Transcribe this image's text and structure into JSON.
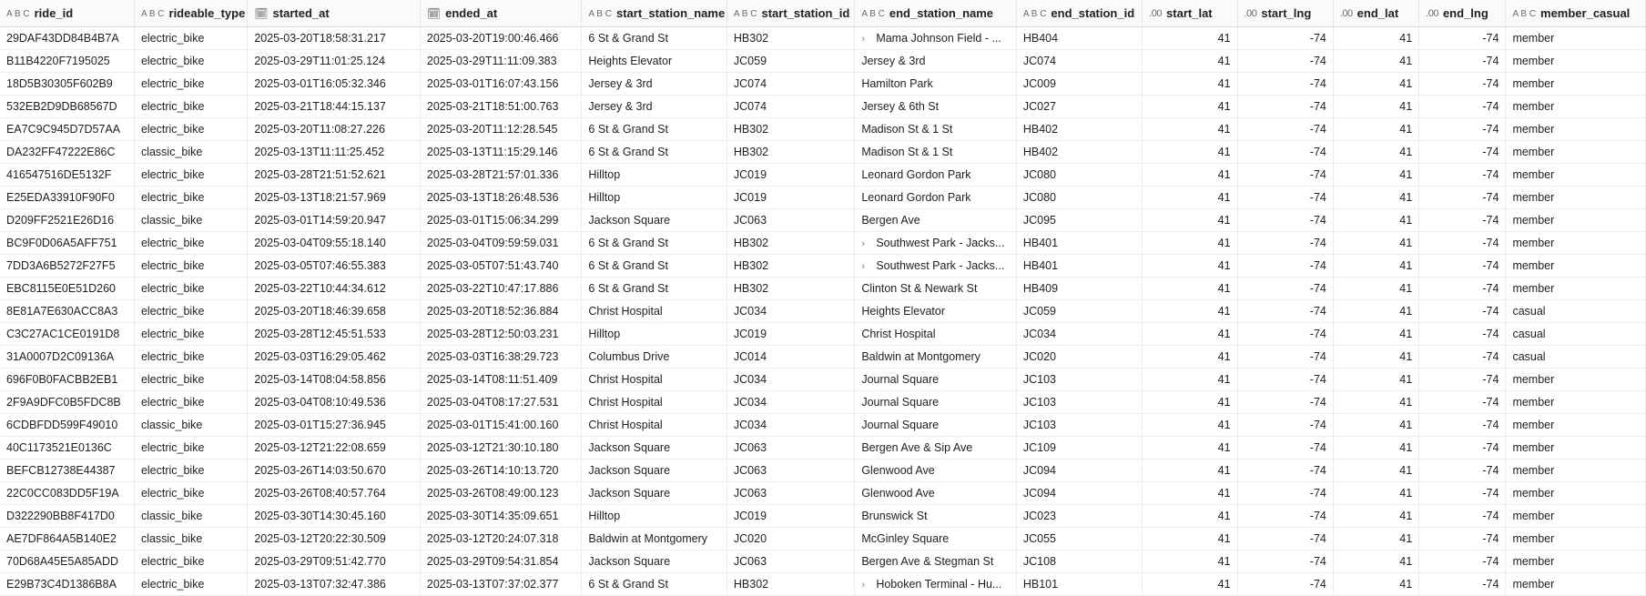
{
  "columns": [
    {
      "key": "ride_id",
      "label": "ride_id",
      "type_icon": "A B C",
      "icon_name": "text-type-icon",
      "align": "left"
    },
    {
      "key": "rideable_type",
      "label": "rideable_type",
      "type_icon": "A B C",
      "icon_name": "text-type-icon",
      "align": "left"
    },
    {
      "key": "started_at",
      "label": "started_at",
      "type_icon": "🗓",
      "icon_name": "datetime-type-icon",
      "align": "left"
    },
    {
      "key": "ended_at",
      "label": "ended_at",
      "type_icon": "🗓",
      "icon_name": "datetime-type-icon",
      "align": "left"
    },
    {
      "key": "start_station_name",
      "label": "start_station_name",
      "type_icon": "A B C",
      "icon_name": "text-type-icon",
      "align": "left"
    },
    {
      "key": "start_station_id",
      "label": "start_station_id",
      "type_icon": "A B C",
      "icon_name": "text-type-icon",
      "align": "left"
    },
    {
      "key": "end_station_name",
      "label": "end_station_name",
      "type_icon": "A B C",
      "icon_name": "text-type-icon",
      "align": "left"
    },
    {
      "key": "end_station_id",
      "label": "end_station_id",
      "type_icon": "A B C",
      "icon_name": "text-type-icon",
      "align": "left"
    },
    {
      "key": "start_lat",
      "label": "start_lat",
      "type_icon": ".00",
      "icon_name": "decimal-type-icon",
      "align": "right"
    },
    {
      "key": "start_lng",
      "label": "start_lng",
      "type_icon": ".00",
      "icon_name": "decimal-type-icon",
      "align": "right"
    },
    {
      "key": "end_lat",
      "label": "end_lat",
      "type_icon": ".00",
      "icon_name": "decimal-type-icon",
      "align": "right"
    },
    {
      "key": "end_lng",
      "label": "end_lng",
      "type_icon": ".00",
      "icon_name": "decimal-type-icon",
      "align": "right"
    },
    {
      "key": "member_casual",
      "label": "member_casual",
      "type_icon": "A B C",
      "icon_name": "text-type-icon",
      "align": "left"
    }
  ],
  "rows": [
    [
      "29DAF43DD84B4B7A",
      "electric_bike",
      "2025-03-20T18:58:31.217",
      "2025-03-20T19:00:46.466",
      "6 St & Grand St",
      "HB302",
      "Mama Johnson Field - ...",
      "HB404",
      "41",
      "-74",
      "41",
      "-74",
      "member"
    ],
    [
      "B11B4220F7195025",
      "electric_bike",
      "2025-03-29T11:01:25.124",
      "2025-03-29T11:11:09.383",
      "Heights Elevator",
      "JC059",
      "Jersey & 3rd",
      "JC074",
      "41",
      "-74",
      "41",
      "-74",
      "member"
    ],
    [
      "18D5B30305F602B9",
      "electric_bike",
      "2025-03-01T16:05:32.346",
      "2025-03-01T16:07:43.156",
      "Jersey & 3rd",
      "JC074",
      "Hamilton Park",
      "JC009",
      "41",
      "-74",
      "41",
      "-74",
      "member"
    ],
    [
      "532EB2D9DB68567D",
      "electric_bike",
      "2025-03-21T18:44:15.137",
      "2025-03-21T18:51:00.763",
      "Jersey & 3rd",
      "JC074",
      "Jersey & 6th St",
      "JC027",
      "41",
      "-74",
      "41",
      "-74",
      "member"
    ],
    [
      "EA7C9C945D7D57AA",
      "electric_bike",
      "2025-03-20T11:08:27.226",
      "2025-03-20T11:12:28.545",
      "6 St & Grand St",
      "HB302",
      "Madison St & 1 St",
      "HB402",
      "41",
      "-74",
      "41",
      "-74",
      "member"
    ],
    [
      "DA232FF47222E86C",
      "classic_bike",
      "2025-03-13T11:11:25.452",
      "2025-03-13T11:15:29.146",
      "6 St & Grand St",
      "HB302",
      "Madison St & 1 St",
      "HB402",
      "41",
      "-74",
      "41",
      "-74",
      "member"
    ],
    [
      "416547516DE5132F",
      "electric_bike",
      "2025-03-28T21:51:52.621",
      "2025-03-28T21:57:01.336",
      "Hilltop",
      "JC019",
      "Leonard Gordon Park",
      "JC080",
      "41",
      "-74",
      "41",
      "-74",
      "member"
    ],
    [
      "E25EDA33910F90F0",
      "electric_bike",
      "2025-03-13T18:21:57.969",
      "2025-03-13T18:26:48.536",
      "Hilltop",
      "JC019",
      "Leonard Gordon Park",
      "JC080",
      "41",
      "-74",
      "41",
      "-74",
      "member"
    ],
    [
      "D209FF2521E26D16",
      "classic_bike",
      "2025-03-01T14:59:20.947",
      "2025-03-01T15:06:34.299",
      "Jackson Square",
      "JC063",
      "Bergen Ave",
      "JC095",
      "41",
      "-74",
      "41",
      "-74",
      "member"
    ],
    [
      "BC9F0D06A5AFF751",
      "electric_bike",
      "2025-03-04T09:55:18.140",
      "2025-03-04T09:59:59.031",
      "6 St & Grand St",
      "HB302",
      "Southwest Park - Jacks...",
      "HB401",
      "41",
      "-74",
      "41",
      "-74",
      "member"
    ],
    [
      "7DD3A6B5272F27F5",
      "electric_bike",
      "2025-03-05T07:46:55.383",
      "2025-03-05T07:51:43.740",
      "6 St & Grand St",
      "HB302",
      "Southwest Park - Jacks...",
      "HB401",
      "41",
      "-74",
      "41",
      "-74",
      "member"
    ],
    [
      "EBC8115E0E51D260",
      "electric_bike",
      "2025-03-22T10:44:34.612",
      "2025-03-22T10:47:17.886",
      "6 St & Grand St",
      "HB302",
      "Clinton St & Newark St",
      "HB409",
      "41",
      "-74",
      "41",
      "-74",
      "member"
    ],
    [
      "8E81A7E630ACC8A3",
      "electric_bike",
      "2025-03-20T18:46:39.658",
      "2025-03-20T18:52:36.884",
      "Christ Hospital",
      "JC034",
      "Heights Elevator",
      "JC059",
      "41",
      "-74",
      "41",
      "-74",
      "casual"
    ],
    [
      "C3C27AC1CE0191D8",
      "electric_bike",
      "2025-03-28T12:45:51.533",
      "2025-03-28T12:50:03.231",
      "Hilltop",
      "JC019",
      "Christ Hospital",
      "JC034",
      "41",
      "-74",
      "41",
      "-74",
      "casual"
    ],
    [
      "31A0007D2C09136A",
      "electric_bike",
      "2025-03-03T16:29:05.462",
      "2025-03-03T16:38:29.723",
      "Columbus Drive",
      "JC014",
      "Baldwin at Montgomery",
      "JC020",
      "41",
      "-74",
      "41",
      "-74",
      "casual"
    ],
    [
      "696F0B0FACBB2EB1",
      "electric_bike",
      "2025-03-14T08:04:58.856",
      "2025-03-14T08:11:51.409",
      "Christ Hospital",
      "JC034",
      "Journal Square",
      "JC103",
      "41",
      "-74",
      "41",
      "-74",
      "member"
    ],
    [
      "2F9A9DFC0B5FDC8B",
      "electric_bike",
      "2025-03-04T08:10:49.536",
      "2025-03-04T08:17:27.531",
      "Christ Hospital",
      "JC034",
      "Journal Square",
      "JC103",
      "41",
      "-74",
      "41",
      "-74",
      "member"
    ],
    [
      "6CDBFDD599F49010",
      "classic_bike",
      "2025-03-01T15:27:36.945",
      "2025-03-01T15:41:00.160",
      "Christ Hospital",
      "JC034",
      "Journal Square",
      "JC103",
      "41",
      "-74",
      "41",
      "-74",
      "member"
    ],
    [
      "40C1173521E0136C",
      "electric_bike",
      "2025-03-12T21:22:08.659",
      "2025-03-12T21:30:10.180",
      "Jackson Square",
      "JC063",
      "Bergen Ave & Sip Ave",
      "JC109",
      "41",
      "-74",
      "41",
      "-74",
      "member"
    ],
    [
      "BEFCB12738E44387",
      "electric_bike",
      "2025-03-26T14:03:50.670",
      "2025-03-26T14:10:13.720",
      "Jackson Square",
      "JC063",
      "Glenwood Ave",
      "JC094",
      "41",
      "-74",
      "41",
      "-74",
      "member"
    ],
    [
      "22C0CC083DD5F19A",
      "electric_bike",
      "2025-03-26T08:40:57.764",
      "2025-03-26T08:49:00.123",
      "Jackson Square",
      "JC063",
      "Glenwood Ave",
      "JC094",
      "41",
      "-74",
      "41",
      "-74",
      "member"
    ],
    [
      "D322290BB8F417D0",
      "classic_bike",
      "2025-03-30T14:30:45.160",
      "2025-03-30T14:35:09.651",
      "Hilltop",
      "JC019",
      "Brunswick St",
      "JC023",
      "41",
      "-74",
      "41",
      "-74",
      "member"
    ],
    [
      "AE7DF864A5B140E2",
      "classic_bike",
      "2025-03-12T20:22:30.509",
      "2025-03-12T20:24:07.318",
      "Baldwin at Montgomery",
      "JC020",
      "McGinley Square",
      "JC055",
      "41",
      "-74",
      "41",
      "-74",
      "member"
    ],
    [
      "70D68A45E5A85ADD",
      "electric_bike",
      "2025-03-29T09:51:42.770",
      "2025-03-29T09:54:31.854",
      "Jackson Square",
      "JC063",
      "Bergen Ave & Stegman St",
      "JC108",
      "41",
      "-74",
      "41",
      "-74",
      "member"
    ],
    [
      "E29B73C4D1386B8A",
      "electric_bike",
      "2025-03-13T07:32:47.386",
      "2025-03-13T07:37:02.377",
      "6 St & Grand St",
      "HB302",
      "Hoboken Terminal - Hu...",
      "HB101",
      "41",
      "-74",
      "41",
      "-74",
      "member"
    ]
  ],
  "expandable_end_station_rows": [
    0,
    9,
    10,
    24
  ],
  "expand_glyph": "›"
}
